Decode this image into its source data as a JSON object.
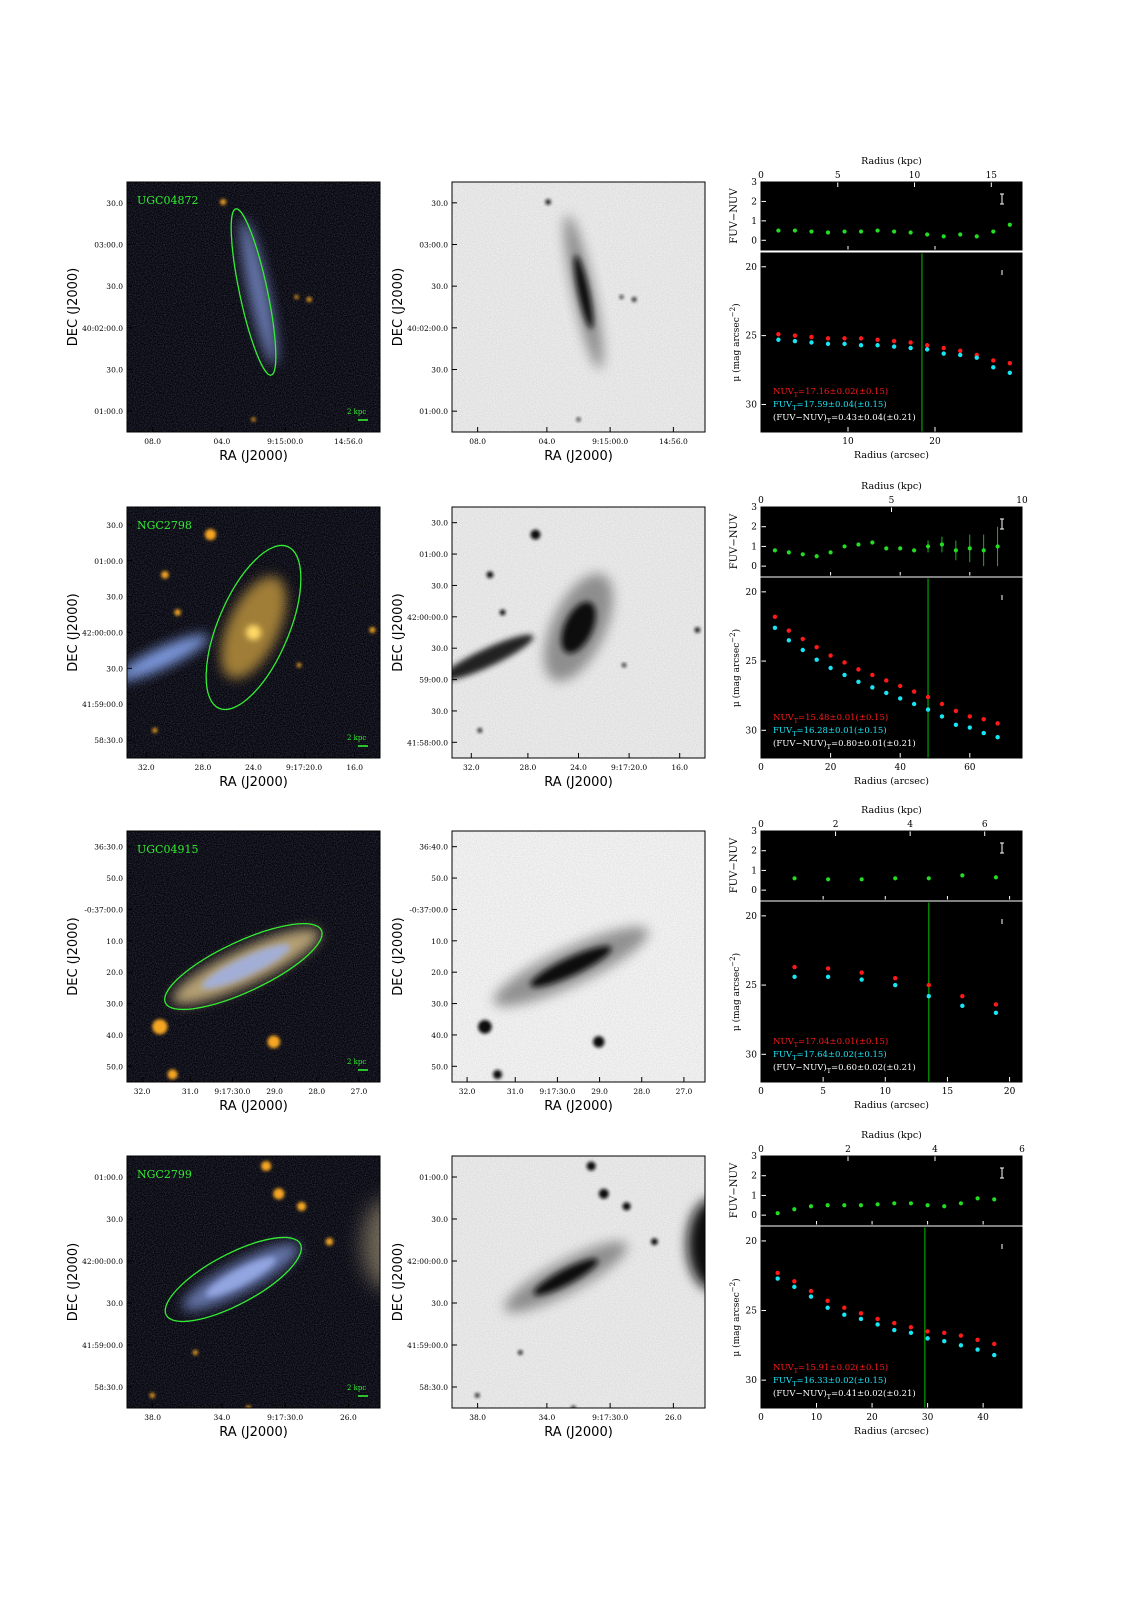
{
  "axis_labels": {
    "ra": "RA (J2000)",
    "dec": "DEC (J2000)",
    "radius_kpc": "Radius (kpc)",
    "radius_arcsec": "Radius (arcsec)",
    "color": "FUV−NUV",
    "mu_main": "μ (mag arcsec",
    "mu_exp": "−2",
    "mu_close": ")"
  },
  "scale_bar_label": "2 kpc",
  "colors": {
    "nuv": "#ff1a1a",
    "fuv": "#19e6f5",
    "color_points": "#22dd22",
    "r25_line": "#00a000",
    "galaxy_label": "#33ee33",
    "ellipse": "#33ee33",
    "panel_bg": "#000000"
  },
  "galaxies": [
    {
      "name": "UGC04872",
      "ra_ticks": [
        "08.0",
        "04.0",
        "9:15:00.0",
        "14:56.0"
      ],
      "dec_ticks": [
        "30.0",
        "03:00.0",
        "30.0",
        "40:02:00.0",
        "30.0",
        "01:00.0"
      ],
      "chart_data": {
        "type": "scatter",
        "x_top_label": "Radius (kpc)",
        "x_top_ticks": [
          "0",
          "5",
          "10",
          "15"
        ],
        "x_top_max": 17,
        "x_bottom_label": "Radius (arcsec)",
        "x_bottom_ticks": [
          "10",
          "20"
        ],
        "xlim": [
          0,
          30
        ],
        "color_ylabel": "FUV−NUV",
        "color_yticks": [
          "0",
          "1",
          "2",
          "3"
        ],
        "color_ylim": [
          -0.5,
          3
        ],
        "mu_yticks": [
          "20",
          "25",
          "30"
        ],
        "mu_ylim": [
          32,
          19
        ],
        "r_limit": 18.5,
        "radius": [
          2,
          3.9,
          5.8,
          7.7,
          9.6,
          11.5,
          13.4,
          15.3,
          17.2,
          19.1,
          21,
          22.9,
          24.8,
          26.7,
          28.6
        ],
        "fuv_nuv": [
          0.5,
          0.5,
          0.45,
          0.4,
          0.45,
          0.45,
          0.5,
          0.45,
          0.4,
          0.3,
          0.2,
          0.3,
          0.2,
          0.45,
          0.8
        ],
        "nuv": [
          24.9,
          25.0,
          25.1,
          25.2,
          25.2,
          25.2,
          25.3,
          25.4,
          25.5,
          25.7,
          25.9,
          26.1,
          26.4,
          26.8,
          27.0
        ],
        "fuv": [
          25.3,
          25.4,
          25.5,
          25.6,
          25.6,
          25.7,
          25.7,
          25.8,
          25.9,
          26.0,
          26.3,
          26.4,
          26.6,
          27.3,
          27.7
        ],
        "nuv_err": [
          0,
          0,
          0,
          0,
          0,
          0,
          0,
          0,
          0,
          0,
          0,
          0,
          0,
          0,
          0.1
        ],
        "fuv_err": [
          0,
          0,
          0,
          0,
          0,
          0,
          0,
          0,
          0,
          0,
          0,
          0,
          0,
          0,
          0.15
        ],
        "text_nuv": "NUVT=17.16±0.02(±0.15)",
        "text_fuv": "FUVT=17.59±0.04(±0.15)",
        "text_color": "(FUV−NUV)T=0.43±0.04(±0.21)"
      }
    },
    {
      "name": "NGC2798",
      "ra_ticks": [
        "32.0",
        "28.0",
        "24.0",
        "9:17:20.0",
        "16.0"
      ],
      "dec_ticks": [
        "30.0",
        "01:00.0",
        "30.0",
        "42:00:00.0",
        "30.0",
        "41:59:00.0",
        "58:30.0"
      ],
      "dec_ticks_mid": [
        "30.0",
        "01:00.0",
        "30.0",
        "42:00:00.0",
        "30.0",
        "59:00.0",
        "30.0",
        "41:58:00.0"
      ],
      "chart_data": {
        "type": "scatter",
        "x_top_label": "Radius (kpc)",
        "x_top_ticks": [
          "0",
          "5",
          "10"
        ],
        "x_top_max": 10,
        "x_bottom_label": "Radius (arcsec)",
        "x_bottom_ticks": [
          "0",
          "20",
          "40",
          "60"
        ],
        "xlim": [
          0,
          75
        ],
        "color_ylabel": "FUV−NUV",
        "color_yticks": [
          "0",
          "1",
          "2",
          "3"
        ],
        "color_ylim": [
          -0.5,
          3
        ],
        "mu_yticks": [
          "20",
          "25",
          "30"
        ],
        "mu_ylim": [
          32,
          19
        ],
        "r_limit": 48,
        "radius": [
          4,
          8,
          12,
          16,
          20,
          24,
          28,
          32,
          36,
          40,
          44,
          48,
          52,
          56,
          60,
          64,
          68
        ],
        "fuv_nuv": [
          0.8,
          0.7,
          0.6,
          0.5,
          0.7,
          1.0,
          1.1,
          1.2,
          0.9,
          0.9,
          0.8,
          1.0,
          1.1,
          0.8,
          0.9,
          0.8,
          1.0
        ],
        "nuv": [
          21.8,
          22.8,
          23.4,
          24.0,
          24.6,
          25.1,
          25.6,
          26.0,
          26.4,
          26.8,
          27.2,
          27.6,
          28.1,
          28.6,
          29.0,
          29.2,
          29.5
        ],
        "fuv": [
          22.6,
          23.5,
          24.2,
          24.9,
          25.5,
          26.0,
          26.5,
          26.9,
          27.3,
          27.7,
          28.1,
          28.5,
          29.0,
          29.6,
          29.8,
          30.2,
          30.5
        ],
        "color_err": [
          0,
          0,
          0,
          0,
          0,
          0,
          0,
          0,
          0,
          0,
          0,
          0.3,
          0.4,
          0.5,
          0.7,
          0.8,
          1.0
        ],
        "text_nuv": "NUVT=15.48±0.01(±0.15)",
        "text_fuv": "FUVT=16.28±0.01(±0.15)",
        "text_color": "(FUV−NUV)T=0.80±0.01(±0.21)"
      }
    },
    {
      "name": "UGC04915",
      "ra_ticks": [
        "32.0",
        "31.0",
        "9:17:30.0",
        "29.0",
        "28.0",
        "27.0"
      ],
      "dec_ticks": [
        "36:30.0",
        "50.0",
        "-0:37:00.0",
        "10.0",
        "20.0",
        "30.0",
        "40.0",
        "50.0"
      ],
      "dec_ticks_mid": [
        "36:40.0",
        "50.0",
        "-0:37:00.0",
        "10.0",
        "20.0",
        "30.0",
        "40.0",
        "50.0"
      ],
      "chart_data": {
        "type": "scatter",
        "x_top_label": "Radius (kpc)",
        "x_top_ticks": [
          "0",
          "2",
          "4",
          "6"
        ],
        "x_top_max": 7,
        "x_bottom_label": "Radius (arcsec)",
        "x_bottom_ticks": [
          "0",
          "5",
          "10",
          "15",
          "20"
        ],
        "xlim": [
          0,
          21
        ],
        "color_ylabel": "FUV−NUV",
        "color_yticks": [
          "0",
          "1",
          "2",
          "3"
        ],
        "color_ylim": [
          -0.5,
          3
        ],
        "mu_yticks": [
          "20",
          "25",
          "30"
        ],
        "mu_ylim": [
          32,
          19
        ],
        "r_limit": 13.5,
        "radius": [
          2.7,
          5.4,
          8.1,
          10.8,
          13.5,
          16.2,
          18.9
        ],
        "fuv_nuv": [
          0.6,
          0.55,
          0.55,
          0.6,
          0.6,
          0.75,
          0.65
        ],
        "nuv": [
          23.7,
          23.8,
          24.1,
          24.5,
          25.0,
          25.8,
          26.4
        ],
        "fuv": [
          24.4,
          24.4,
          24.6,
          25.0,
          25.8,
          26.5,
          27.0
        ],
        "text_nuv": "NUVT=17.04±0.01(±0.15)",
        "text_fuv": "FUVT=17.64±0.02(±0.15)",
        "text_color": "(FUV−NUV)T=0.60±0.02(±0.21)"
      }
    },
    {
      "name": "NGC2799",
      "ra_ticks": [
        "38.0",
        "34.0",
        "9:17:30.0",
        "26.0"
      ],
      "dec_ticks": [
        "01:00.0",
        "30.0",
        "42:00:00.0",
        "30.0",
        "41:59:00.0",
        "58:30.0"
      ],
      "chart_data": {
        "type": "scatter",
        "x_top_label": "Radius (kpc)",
        "x_top_ticks": [
          "0",
          "2",
          "4",
          "6"
        ],
        "x_top_max": 6,
        "x_bottom_label": "Radius (arcsec)",
        "x_bottom_ticks": [
          "0",
          "10",
          "20",
          "30",
          "40"
        ],
        "xlim": [
          0,
          47
        ],
        "color_ylabel": "FUV−NUV",
        "color_yticks": [
          "0",
          "1",
          "2",
          "3"
        ],
        "color_ylim": [
          -0.5,
          3
        ],
        "mu_yticks": [
          "20",
          "25",
          "30"
        ],
        "mu_ylim": [
          32,
          19
        ],
        "r_limit": 29.5,
        "radius": [
          3,
          6,
          9,
          12,
          15,
          18,
          21,
          24,
          27,
          30,
          33,
          36,
          39,
          42
        ],
        "fuv_nuv": [
          0.1,
          0.3,
          0.45,
          0.5,
          0.5,
          0.5,
          0.55,
          0.6,
          0.6,
          0.5,
          0.45,
          0.6,
          0.85,
          0.8
        ],
        "nuv": [
          22.3,
          22.9,
          23.6,
          24.3,
          24.8,
          25.2,
          25.6,
          25.9,
          26.2,
          26.5,
          26.6,
          26.8,
          27.1,
          27.4
        ],
        "fuv": [
          22.7,
          23.3,
          24.0,
          24.8,
          25.3,
          25.6,
          26.0,
          26.4,
          26.6,
          27.0,
          27.2,
          27.5,
          27.8,
          28.2
        ],
        "text_nuv": "NUVT=15.91±0.02(±0.15)",
        "text_fuv": "FUVT=16.33±0.02(±0.15)",
        "text_color": "(FUV−NUV)T=0.41±0.02(±0.21)"
      }
    }
  ]
}
